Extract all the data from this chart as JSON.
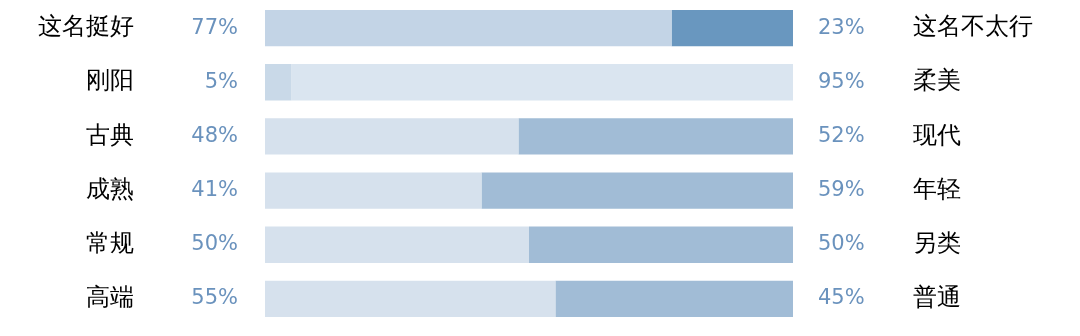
{
  "chart_data": {
    "type": "bar",
    "orientation": "horizontal",
    "stacked": true,
    "categories": [
      "这名挺好",
      "刚阳",
      "古典",
      "成熟",
      "常规",
      "高端"
    ],
    "y2_categories": [
      "这名不太行",
      "柔美",
      "现代",
      "年轻",
      "另类",
      "普通"
    ],
    "xlim": [
      0,
      100
    ],
    "grid": false,
    "legend": false,
    "tick_labels": "y",
    "series": [
      {
        "values": [
          77,
          5,
          48,
          41,
          50,
          55
        ],
        "colors": [
          "#c3d4e6",
          "#c9d9e8",
          "#d6e1ed",
          "#d6e1ed",
          "#d6e1ed",
          "#d6e1ed"
        ],
        "value_labels": [
          "77%",
          "5%",
          "48%",
          "41%",
          "50%",
          "55%"
        ]
      },
      {
        "values": [
          23,
          95,
          52,
          59,
          50,
          45
        ],
        "colors": [
          "#6997bf",
          "#dae5f0",
          "#a1bcd6",
          "#a1bcd6",
          "#a1bcd6",
          "#a1bcd6"
        ],
        "value_labels": [
          "23%",
          "95%",
          "52%",
          "59%",
          "50%",
          "45%"
        ]
      }
    ]
  }
}
